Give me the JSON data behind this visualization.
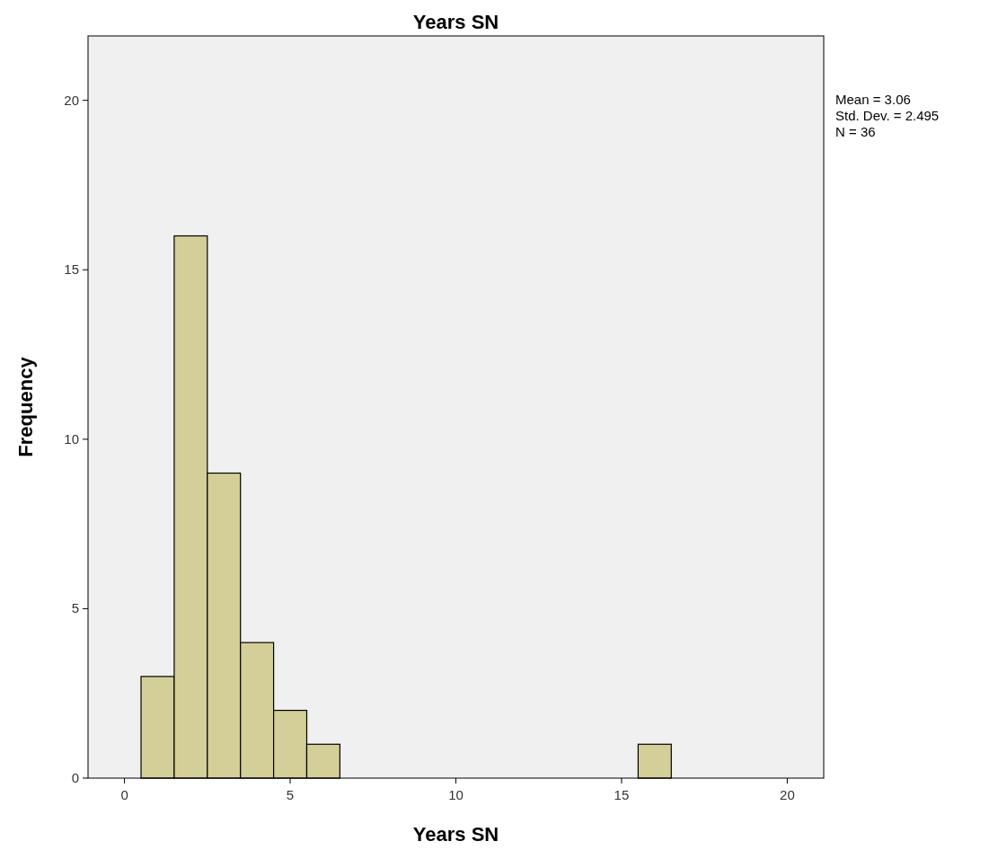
{
  "chart_data": {
    "type": "histogram",
    "title": "Years SN",
    "xlabel": "Years SN",
    "ylabel": "Frequency",
    "bins": [
      0.5,
      1.5,
      2.5,
      3.5,
      4.5,
      5.5,
      6.5,
      7.5,
      8.5,
      9.5,
      10.5,
      11.5,
      12.5,
      13.5,
      14.5,
      15.5,
      16.5
    ],
    "values": [
      3,
      16,
      9,
      4,
      2,
      1,
      0,
      0,
      0,
      0,
      0,
      0,
      0,
      0,
      0,
      1
    ],
    "color": "#d4cf98",
    "xlim": [
      -1.1,
      21.1
    ],
    "xticks": [
      0,
      5,
      10,
      15,
      20
    ],
    "ylim": [
      0,
      21.9
    ],
    "yticks": [
      0,
      5,
      10,
      15,
      20
    ],
    "grid": false,
    "annotations": [
      "Mean = 3.06",
      "Std. Dev. = 2.495",
      "N = 36"
    ]
  }
}
